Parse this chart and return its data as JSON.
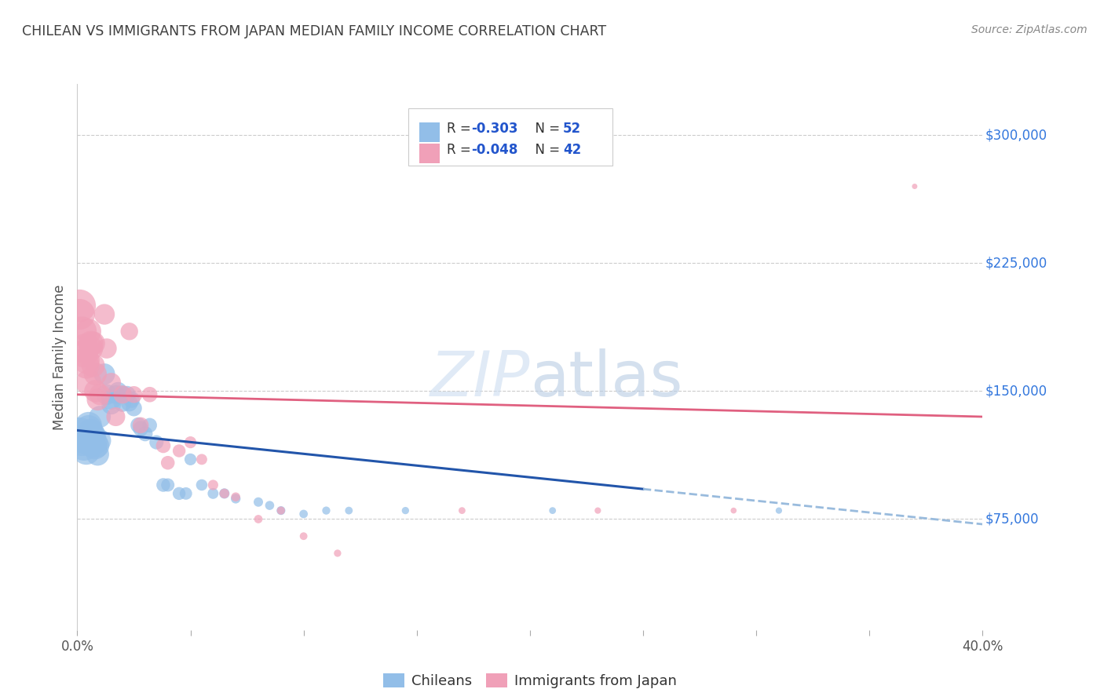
{
  "title": "CHILEAN VS IMMIGRANTS FROM JAPAN MEDIAN FAMILY INCOME CORRELATION CHART",
  "source": "Source: ZipAtlas.com",
  "ylabel": "Median Family Income",
  "watermark_zip": "ZIP",
  "watermark_atlas": "atlas",
  "legend_blue_r": "-0.303",
  "legend_blue_n": "52",
  "legend_pink_r": "-0.048",
  "legend_pink_n": "42",
  "legend_label_blue": "Chileans",
  "legend_label_pink": "Immigrants from Japan",
  "yticks": [
    75000,
    150000,
    225000,
    300000
  ],
  "ytick_labels": [
    "$75,000",
    "$150,000",
    "$225,000",
    "$300,000"
  ],
  "xmin": 0.0,
  "xmax": 0.4,
  "ymin": 10000,
  "ymax": 330000,
  "blue_color": "#92BEE8",
  "pink_color": "#F0A0B8",
  "blue_line_color": "#2255AA",
  "pink_line_color": "#E06080",
  "dashed_line_color": "#99BBDD",
  "background_color": "#FFFFFF",
  "grid_color": "#CCCCCC",
  "title_color": "#404040",
  "source_color": "#888888",
  "yaxis_label_color": "#555555",
  "ytick_label_color": "#3377DD",
  "blue_points": [
    [
      0.001,
      125000
    ],
    [
      0.002,
      121000
    ],
    [
      0.003,
      118000
    ],
    [
      0.003,
      122000
    ],
    [
      0.004,
      115000
    ],
    [
      0.005,
      128000
    ],
    [
      0.005,
      130000
    ],
    [
      0.006,
      126000
    ],
    [
      0.006,
      119000
    ],
    [
      0.007,
      124000
    ],
    [
      0.007,
      123000
    ],
    [
      0.008,
      120000
    ],
    [
      0.008,
      117000
    ],
    [
      0.009,
      118000
    ],
    [
      0.009,
      113000
    ],
    [
      0.01,
      121000
    ],
    [
      0.01,
      135000
    ],
    [
      0.012,
      160000
    ],
    [
      0.013,
      148000
    ],
    [
      0.015,
      145000
    ],
    [
      0.015,
      142000
    ],
    [
      0.017,
      148000
    ],
    [
      0.018,
      150000
    ],
    [
      0.02,
      148000
    ],
    [
      0.02,
      143000
    ],
    [
      0.022,
      148000
    ],
    [
      0.023,
      143000
    ],
    [
      0.024,
      145000
    ],
    [
      0.025,
      140000
    ],
    [
      0.027,
      130000
    ],
    [
      0.028,
      128000
    ],
    [
      0.03,
      125000
    ],
    [
      0.032,
      130000
    ],
    [
      0.035,
      120000
    ],
    [
      0.038,
      95000
    ],
    [
      0.04,
      95000
    ],
    [
      0.045,
      90000
    ],
    [
      0.048,
      90000
    ],
    [
      0.05,
      110000
    ],
    [
      0.055,
      95000
    ],
    [
      0.06,
      90000
    ],
    [
      0.065,
      90000
    ],
    [
      0.07,
      87000
    ],
    [
      0.08,
      85000
    ],
    [
      0.085,
      83000
    ],
    [
      0.09,
      80000
    ],
    [
      0.1,
      78000
    ],
    [
      0.11,
      80000
    ],
    [
      0.12,
      80000
    ],
    [
      0.145,
      80000
    ],
    [
      0.21,
      80000
    ],
    [
      0.31,
      80000
    ]
  ],
  "pink_points": [
    [
      0.001,
      200000
    ],
    [
      0.001,
      195000
    ],
    [
      0.002,
      185000
    ],
    [
      0.003,
      175000
    ],
    [
      0.003,
      172000
    ],
    [
      0.004,
      168000
    ],
    [
      0.004,
      165000
    ],
    [
      0.005,
      155000
    ],
    [
      0.005,
      185000
    ],
    [
      0.006,
      178000
    ],
    [
      0.006,
      175000
    ],
    [
      0.007,
      178000
    ],
    [
      0.007,
      165000
    ],
    [
      0.008,
      160000
    ],
    [
      0.008,
      150000
    ],
    [
      0.009,
      145000
    ],
    [
      0.01,
      148000
    ],
    [
      0.012,
      195000
    ],
    [
      0.013,
      175000
    ],
    [
      0.015,
      155000
    ],
    [
      0.017,
      135000
    ],
    [
      0.02,
      148000
    ],
    [
      0.023,
      185000
    ],
    [
      0.025,
      148000
    ],
    [
      0.028,
      130000
    ],
    [
      0.032,
      148000
    ],
    [
      0.038,
      118000
    ],
    [
      0.04,
      108000
    ],
    [
      0.045,
      115000
    ],
    [
      0.05,
      120000
    ],
    [
      0.055,
      110000
    ],
    [
      0.06,
      95000
    ],
    [
      0.065,
      90000
    ],
    [
      0.07,
      88000
    ],
    [
      0.08,
      75000
    ],
    [
      0.09,
      80000
    ],
    [
      0.1,
      65000
    ],
    [
      0.115,
      55000
    ],
    [
      0.17,
      80000
    ],
    [
      0.23,
      80000
    ],
    [
      0.29,
      80000
    ],
    [
      0.37,
      270000
    ]
  ],
  "blue_sizes": [
    900,
    800,
    750,
    700,
    650,
    620,
    600,
    580,
    560,
    540,
    520,
    500,
    480,
    460,
    440,
    420,
    400,
    380,
    360,
    340,
    320,
    300,
    280,
    270,
    260,
    250,
    240,
    230,
    220,
    210,
    200,
    190,
    180,
    170,
    160,
    150,
    140,
    130,
    120,
    110,
    100,
    90,
    80,
    75,
    70,
    65,
    60,
    55,
    50,
    45,
    40,
    35
  ],
  "pink_sizes": [
    900,
    800,
    750,
    700,
    650,
    600,
    580,
    560,
    540,
    520,
    500,
    480,
    460,
    440,
    420,
    400,
    380,
    360,
    340,
    320,
    300,
    280,
    260,
    240,
    220,
    200,
    180,
    160,
    140,
    120,
    100,
    90,
    80,
    70,
    60,
    55,
    50,
    45,
    40,
    35,
    30,
    25
  ]
}
